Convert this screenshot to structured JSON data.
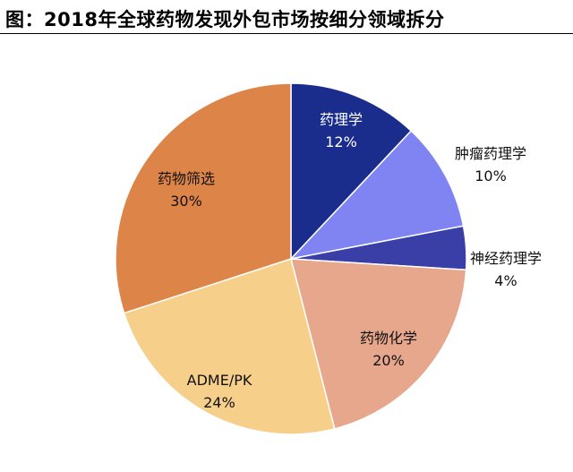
{
  "header": {
    "title": "图：2018年全球药物发现外包市场按细分领域拆分"
  },
  "chart_data": {
    "type": "pie",
    "title": "图：2018年全球药物发现外包市场按细分领域拆分",
    "slices": [
      {
        "label": "药理学",
        "value": 12,
        "value_label": "12%",
        "color": "#1a2c8c",
        "text_color": "#ffffff"
      },
      {
        "label": "肿瘤药理学",
        "value": 10,
        "value_label": "10%",
        "color": "#7f84f2",
        "text_color": "#111111"
      },
      {
        "label": "神经药理学",
        "value": 4,
        "value_label": "4%",
        "color": "#3a3fa8",
        "text_color": "#111111"
      },
      {
        "label": "药物化学",
        "value": 20,
        "value_label": "20%",
        "color": "#e6a78c",
        "text_color": "#111111"
      },
      {
        "label": "ADME/PK",
        "value": 24,
        "value_label": "24%",
        "color": "#f6cf8a",
        "text_color": "#111111"
      },
      {
        "label": "药物筛选",
        "value": 30,
        "value_label": "30%",
        "color": "#dd8548",
        "text_color": "#111111"
      }
    ],
    "start_angle_deg": 0,
    "direction": "clockwise",
    "legend": "none"
  }
}
